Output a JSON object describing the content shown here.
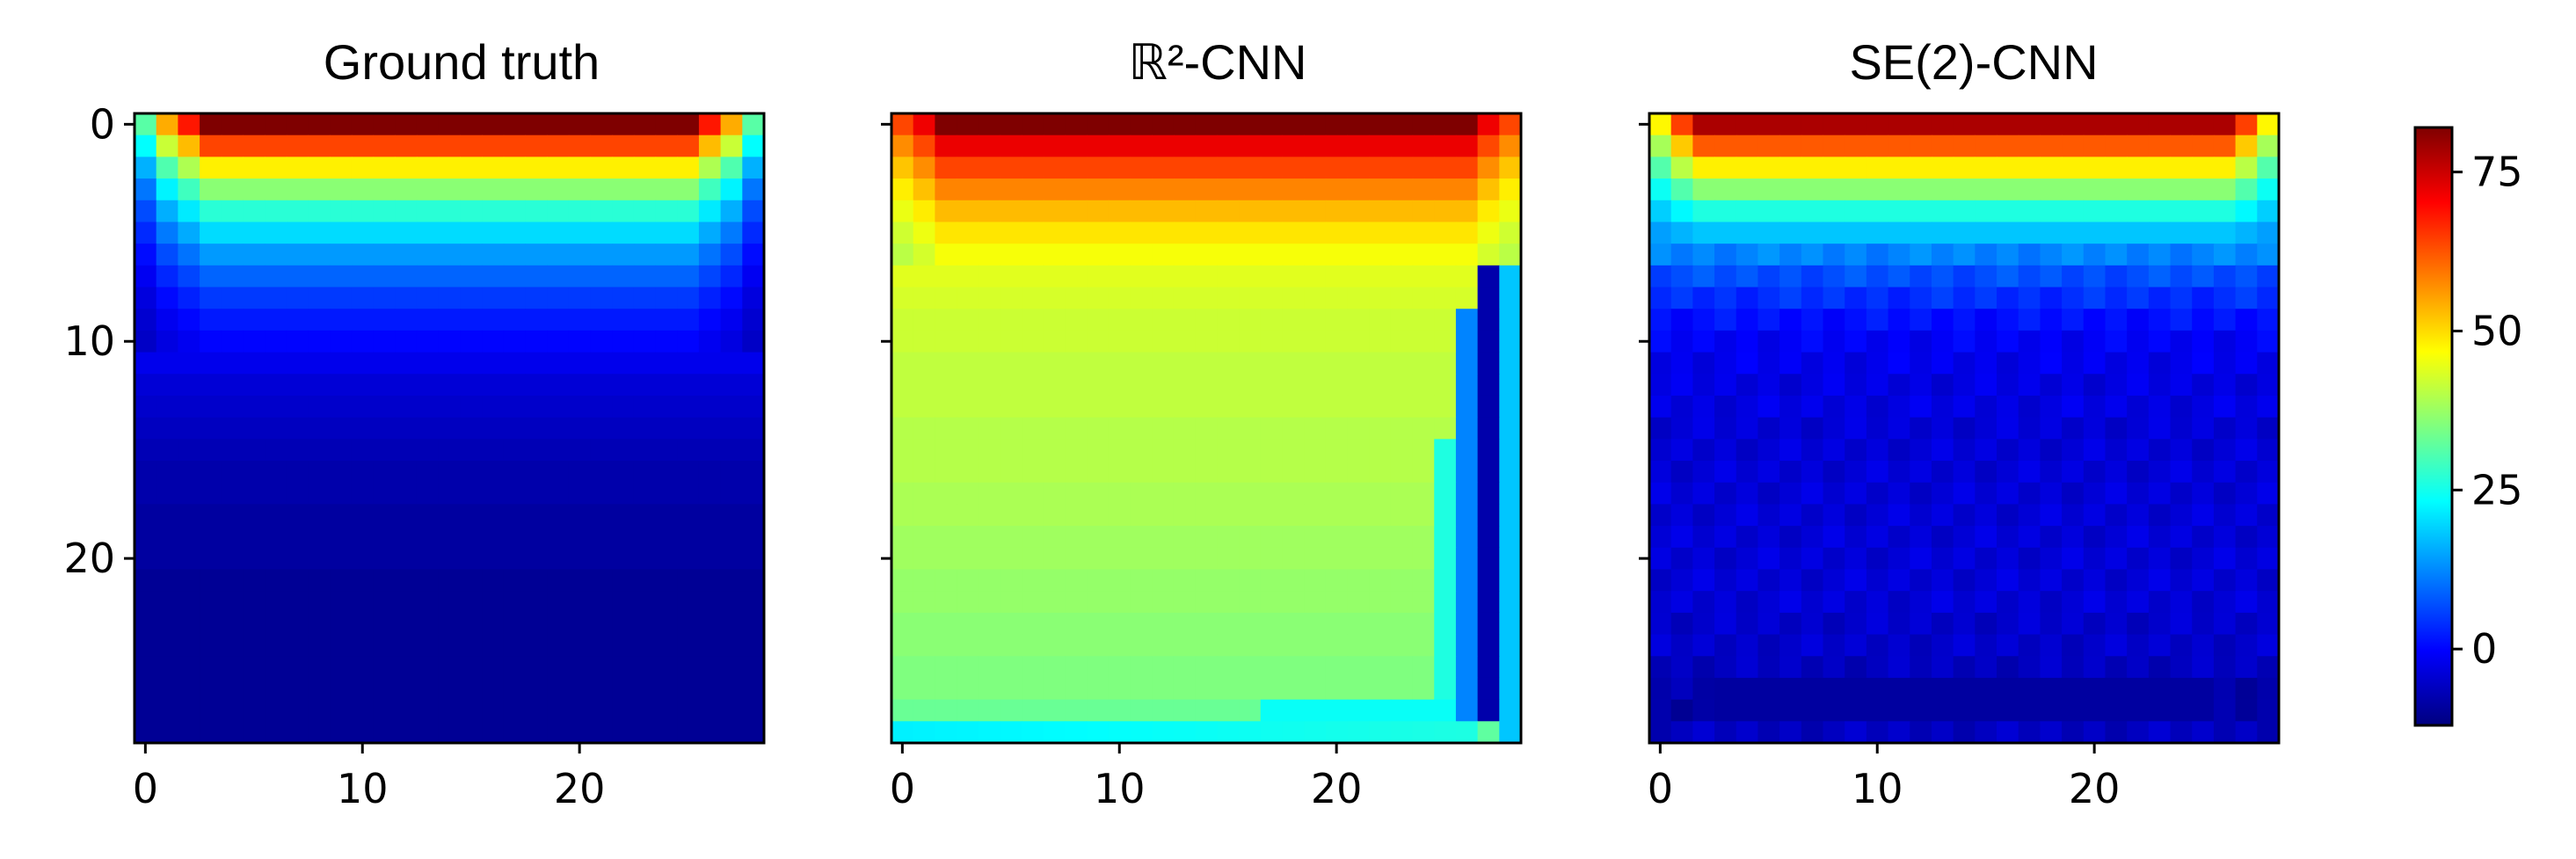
{
  "figure": {
    "panel_titles": [
      "Ground truth",
      "ℝ²-CNN",
      "SE(2)-CNN"
    ]
  },
  "chart_data": [
    {
      "type": "heatmap",
      "title": "Ground truth",
      "grid_size": [
        29,
        29
      ],
      "x_ticks": [
        0,
        10,
        20
      ],
      "y_ticks": [
        0,
        10,
        20
      ],
      "show_y_tick_labels": true,
      "row_profile": [
        82,
        64,
        48,
        36,
        27,
        20,
        14,
        9,
        5,
        2,
        0,
        -2,
        -4,
        -5,
        -6,
        -7,
        -8,
        -8,
        -9,
        -9,
        -9,
        -10,
        -10,
        -10,
        -10,
        -10,
        -10,
        -10,
        -10
      ],
      "pattern": "top-heated plate: values highest along row 0, decaying with depth, reduced near the left and right edges"
    },
    {
      "type": "heatmap",
      "title": "ℝ²-CNN",
      "grid_size": [
        29,
        29
      ],
      "x_ticks": [
        0,
        10,
        20
      ],
      "y_ticks": [
        0,
        10,
        20
      ],
      "show_y_tick_labels": false,
      "row_profile": [
        82,
        72,
        64,
        58,
        53,
        49,
        46,
        44,
        43,
        42,
        42,
        41,
        41,
        41,
        40,
        40,
        40,
        39,
        39,
        38,
        38,
        37,
        37,
        36,
        36,
        35,
        35,
        33,
        32
      ],
      "pattern": "warm band at top, broad green interior, dark blue stripe near column 27, cyan right edge and bottom"
    },
    {
      "type": "heatmap",
      "title": "SE(2)-CNN",
      "grid_size": [
        29,
        29
      ],
      "x_ticks": [
        0,
        10,
        20
      ],
      "y_ticks": [
        0,
        10,
        20
      ],
      "show_y_tick_labels": false,
      "row_profile": [
        78,
        62,
        48,
        36,
        26,
        18,
        12,
        7,
        4,
        1,
        -1,
        -2,
        -3,
        -3,
        -4,
        -4,
        -4,
        -4,
        -4,
        -4,
        -4,
        -4,
        -4,
        -5,
        -5,
        -6,
        -8,
        -9,
        -6
      ],
      "pattern": "similar to ground truth but interior noisy blue, darker band near row 27"
    }
  ],
  "colorbar": {
    "colormap": "jet",
    "range": [
      -12,
      82
    ],
    "ticks": [
      75,
      50,
      25,
      0
    ],
    "tick_labels": [
      "75",
      "50",
      "25",
      "0"
    ]
  },
  "colors": {
    "jet_stops": [
      "#00007f",
      "#0000ff",
      "#007fff",
      "#00ffff",
      "#7fff7f",
      "#ffff00",
      "#ff7f00",
      "#ff0000",
      "#7f0000"
    ]
  }
}
